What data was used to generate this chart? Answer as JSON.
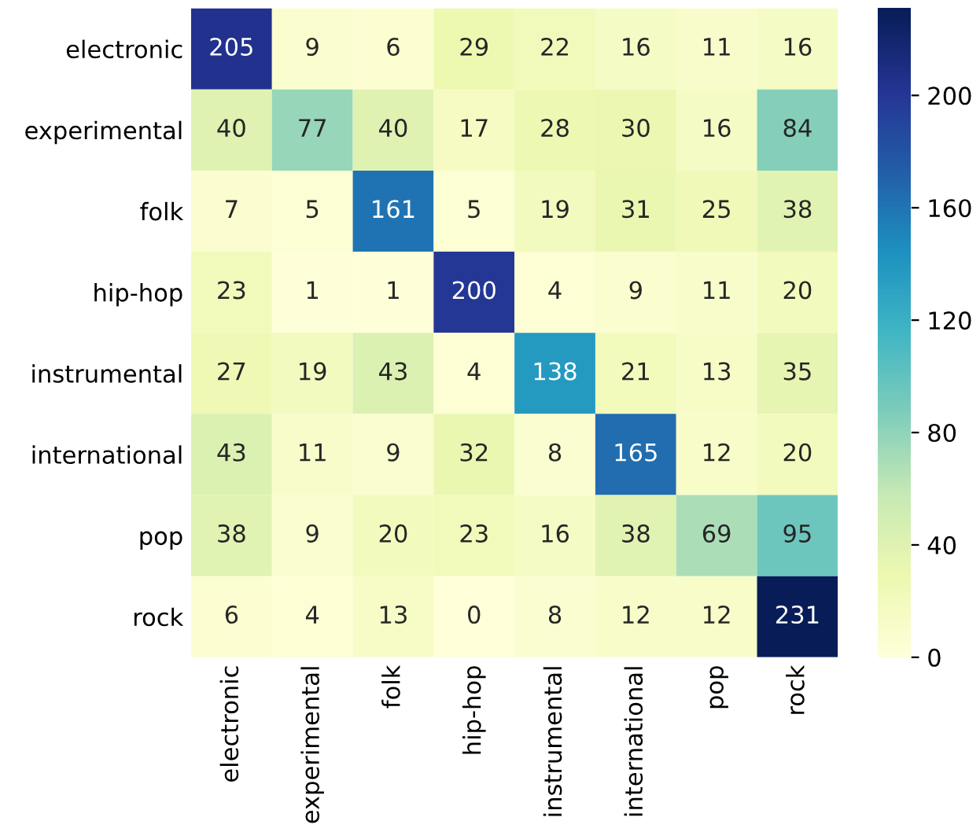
{
  "chart_data": {
    "type": "heatmap",
    "categories": [
      "electronic",
      "experimental",
      "folk",
      "hip-hop",
      "instrumental",
      "international",
      "pop",
      "rock"
    ],
    "y_categories": [
      "electronic",
      "experimental",
      "folk",
      "hip-hop",
      "instrumental",
      "international",
      "pop",
      "rock"
    ],
    "cells": [
      [
        205,
        9,
        6,
        29,
        22,
        16,
        11,
        16
      ],
      [
        40,
        77,
        40,
        17,
        28,
        30,
        16,
        84
      ],
      [
        7,
        5,
        161,
        5,
        19,
        31,
        25,
        38
      ],
      [
        23,
        1,
        1,
        200,
        4,
        9,
        11,
        20
      ],
      [
        27,
        19,
        43,
        4,
        138,
        21,
        13,
        35
      ],
      [
        43,
        11,
        9,
        32,
        8,
        165,
        12,
        20
      ],
      [
        38,
        9,
        20,
        23,
        16,
        38,
        69,
        95
      ],
      [
        6,
        4,
        13,
        0,
        8,
        12,
        12,
        231
      ]
    ],
    "clim": [
      0,
      231
    ],
    "cticks": [
      0,
      40,
      80,
      120,
      160,
      200
    ],
    "data_labels": true
  }
}
